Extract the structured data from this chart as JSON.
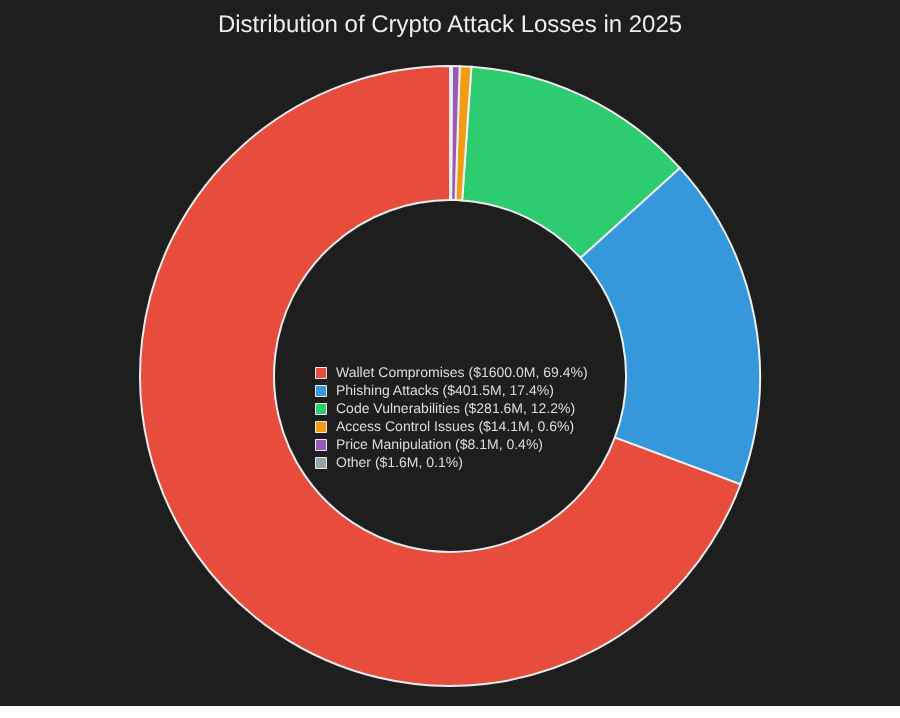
{
  "chart_data": {
    "type": "donut",
    "title": "Distribution of Crypto Attack Losses in 2025",
    "categories": [
      "Wallet Compromises ($1600.0M, 69.4%)",
      "Phishing Attacks ($401.5M, 17.4%)",
      "Code Vulnerabilities ($281.6M, 12.2%)",
      "Access Control Issues ($14.1M, 0.6%)",
      "Price Manipulation ($8.1M, 0.4%)",
      "Other ($1.6M, 0.1%)"
    ],
    "values": [
      69.4,
      17.4,
      12.2,
      0.6,
      0.4,
      0.1
    ],
    "colors": [
      "#e74c3c",
      "#3498db",
      "#2ecc71",
      "#f39c12",
      "#9b59b6",
      "#95a5a6"
    ],
    "legend": "center"
  }
}
